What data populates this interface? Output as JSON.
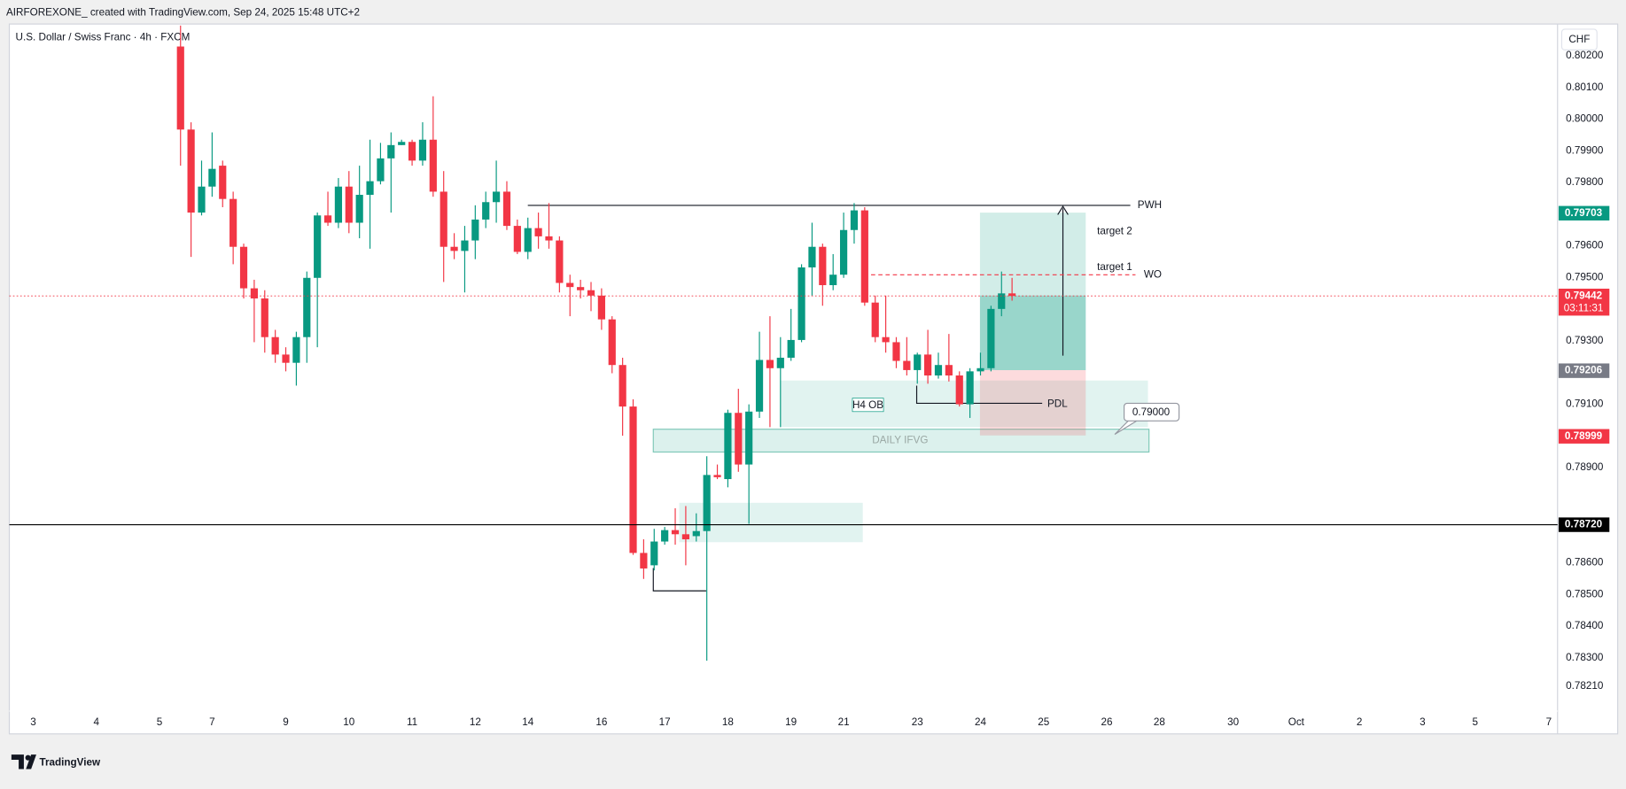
{
  "header": {
    "text": "AIRFOREXONE_ created with TradingView.com, Sep 24, 2025 15:48 UTC+2"
  },
  "footer": {
    "brand": "TradingView"
  },
  "annotations": {
    "pwh": "PWH",
    "target_2": "target 2",
    "target_1": "target 1",
    "wo": "WO",
    "h4_ob": "H4 OB",
    "pdl": "PDL",
    "callout": "0.79000",
    "daily_ifvg": "DAILY IFVG"
  },
  "chart_data": {
    "type": "candlestick",
    "title": "U.S. Dollar / Swiss Franc · 4h · FXCM",
    "currency": "CHF",
    "up_color": "#089981",
    "down_color": "#f23645",
    "ylim": [
      0.7806,
      0.803
    ],
    "yticks": [
      {
        "value": 0.802,
        "label": "0.80200"
      },
      {
        "value": 0.801,
        "label": "0.80100"
      },
      {
        "value": 0.8,
        "label": "0.80000"
      },
      {
        "value": 0.799,
        "label": "0.79900"
      },
      {
        "value": 0.798,
        "label": "0.79800"
      },
      {
        "value": 0.796,
        "label": "0.79600"
      },
      {
        "value": 0.795,
        "label": "0.79500"
      },
      {
        "value": 0.793,
        "label": "0.79300"
      },
      {
        "value": 0.791,
        "label": "0.79100"
      },
      {
        "value": 0.789,
        "label": "0.78900"
      },
      {
        "value": 0.786,
        "label": "0.78600"
      },
      {
        "value": 0.785,
        "label": "0.78500"
      },
      {
        "value": 0.784,
        "label": "0.78400"
      },
      {
        "value": 0.783,
        "label": "0.78300"
      },
      {
        "value": 0.7821,
        "label": "0.78210"
      }
    ],
    "price_markers": [
      {
        "value": 0.79703,
        "label": "0.79703",
        "color": "#089981"
      },
      {
        "value": 0.79442,
        "label": "0.79442",
        "countdown": "03:11:31",
        "color": "#f23645",
        "line": "dotted"
      },
      {
        "value": 0.79206,
        "label": "0.79206",
        "color": "#787b86"
      },
      {
        "value": 0.78999,
        "label": "0.78999",
        "color": "#f23645"
      },
      {
        "value": 0.7872,
        "label": "0.78720",
        "color": "#000000",
        "line": "solid"
      }
    ],
    "categories": [
      "3",
      null,
      null,
      null,
      null,
      null,
      "4",
      null,
      null,
      null,
      null,
      null,
      "5",
      null,
      null,
      null,
      null,
      "7",
      null,
      null,
      null,
      null,
      null,
      null,
      "9",
      null,
      null,
      null,
      null,
      null,
      "10",
      null,
      null,
      null,
      null,
      null,
      "11",
      null,
      null,
      null,
      null,
      null,
      "12",
      null,
      null,
      null,
      null,
      "14",
      null,
      null,
      null,
      null,
      null,
      null,
      "16",
      null,
      null,
      null,
      null,
      null,
      "17",
      null,
      null,
      null,
      null,
      null,
      "18",
      null,
      null,
      null,
      null,
      null,
      "19",
      null,
      null,
      null,
      null,
      "21",
      null,
      null,
      null,
      null,
      null,
      null,
      "23",
      null,
      null,
      null,
      null,
      null,
      "24",
      null,
      null,
      null,
      null,
      null,
      "25",
      null,
      null,
      null,
      null,
      null,
      "26",
      null,
      null,
      null,
      null,
      "28",
      null,
      null,
      null,
      null,
      null,
      null,
      "30",
      null,
      null,
      null,
      null,
      null,
      "Oct",
      null,
      null,
      null,
      null,
      null,
      "2",
      null,
      null,
      null,
      null,
      null,
      "3",
      null,
      null,
      null,
      null,
      "5",
      null,
      null,
      null,
      null,
      null,
      null,
      "7",
      null
    ],
    "open": [
      null,
      null,
      null,
      null,
      null,
      null,
      null,
      null,
      null,
      null,
      null,
      null,
      null,
      null,
      0.80229,
      0.79967,
      0.79705,
      0.79787,
      0.79853,
      0.79748,
      0.79597,
      0.79466,
      0.79434,
      0.79312,
      0.79257,
      0.79231,
      0.79312,
      0.79499,
      0.79696,
      0.79673,
      0.79787,
      0.79673,
      0.79761,
      0.79804,
      0.79876,
      0.79918,
      0.79928,
      0.79869,
      0.79935,
      0.79771,
      0.79597,
      0.79584,
      0.79617,
      0.79683,
      0.79738,
      0.79771,
      0.79663,
      0.79581,
      0.79656,
      0.7963,
      0.79617,
      0.79483,
      0.7947,
      0.7946,
      0.79443,
      0.79368,
      0.79224,
      0.79093,
      0.78631,
      0.78592,
      0.78667,
      0.78703,
      0.7869,
      0.78684,
      0.787,
      0.78877,
      0.78864,
      0.79073,
      0.7891,
      0.79077,
      0.7924,
      0.79214,
      0.79247,
      0.79303,
      0.79532,
      0.79597,
      0.79476,
      0.79509,
      0.7965,
      0.79712,
      0.79421,
      0.79312,
      0.79296,
      0.79237,
      0.79208,
      0.79257,
      0.79191,
      0.79224,
      0.79191,
      0.791,
      0.79204,
      0.79214,
      0.79401,
      0.7945,
      null,
      null,
      null,
      null,
      null,
      null,
      null,
      null,
      null,
      null,
      null,
      null,
      null,
      null,
      null,
      null,
      null,
      null,
      null,
      null,
      null,
      null,
      null,
      null,
      null,
      null,
      null,
      null,
      null,
      null,
      null,
      null,
      null,
      null,
      null,
      null,
      null,
      null,
      null,
      null,
      null,
      null,
      null,
      null,
      null,
      null,
      null,
      null,
      null,
      null,
      null,
      null
    ],
    "high": [
      null,
      null,
      null,
      null,
      null,
      null,
      null,
      null,
      null,
      null,
      null,
      null,
      null,
      null,
      0.80295,
      0.7999,
      0.79869,
      0.79958,
      0.79869,
      0.79771,
      0.79607,
      0.79493,
      0.7946,
      0.79335,
      0.7928,
      0.79329,
      0.79519,
      0.79705,
      0.79771,
      0.79814,
      0.79836,
      0.79853,
      0.79935,
      0.79925,
      0.79958,
      0.79935,
      0.79935,
      0.7999,
      0.80072,
      0.79836,
      0.7964,
      0.79663,
      0.79728,
      0.79771,
      0.79869,
      0.79804,
      0.79683,
      0.79689,
      0.79705,
      0.79735,
      0.7963,
      0.79509,
      0.79493,
      0.79486,
      0.79466,
      0.79378,
      0.79247,
      0.79116,
      0.78674,
      0.78707,
      0.78713,
      0.78772,
      0.78779,
      0.78756,
      0.78936,
      0.7891,
      0.79083,
      0.79149,
      0.791,
      0.79329,
      0.79378,
      0.79312,
      0.79401,
      0.79542,
      0.79673,
      0.79607,
      0.79574,
      0.79705,
      0.79735,
      0.79722,
      0.79443,
      0.79443,
      0.79312,
      0.79312,
      0.79263,
      0.79335,
      0.79263,
      0.79322,
      0.79204,
      0.79214,
      0.79263,
      0.79411,
      0.79519,
      0.79499,
      null,
      null,
      null,
      null,
      null,
      null,
      null,
      null,
      null,
      null,
      null,
      null,
      null,
      null,
      null,
      null,
      null,
      null,
      null,
      null,
      null,
      null,
      null,
      null,
      null,
      null,
      null,
      null,
      null,
      null,
      null,
      null,
      null,
      null,
      null,
      null,
      null,
      null,
      null,
      null,
      null,
      null,
      null,
      null,
      null,
      null,
      null,
      null,
      null,
      null,
      null,
      null
    ],
    "low": [
      null,
      null,
      null,
      null,
      null,
      null,
      null,
      null,
      null,
      null,
      null,
      null,
      null,
      null,
      0.79853,
      0.79565,
      0.79696,
      0.79755,
      0.79722,
      0.79542,
      0.79434,
      0.79296,
      0.79263,
      0.79231,
      0.79204,
      0.79159,
      0.79231,
      0.7928,
      0.79663,
      0.79656,
      0.7964,
      0.79624,
      0.79591,
      0.79794,
      0.79705,
      0.79918,
      0.79853,
      0.79853,
      0.79755,
      0.79486,
      0.79558,
      0.79453,
      0.79558,
      0.79656,
      0.79673,
      0.7965,
      0.79574,
      0.79558,
      0.79591,
      0.79591,
      0.79453,
      0.79378,
      0.79434,
      0.79394,
      0.79335,
      0.79198,
      0.79001,
      0.78625,
      0.78549,
      0.78576,
      0.78657,
      0.78657,
      0.78592,
      0.78667,
      0.78291,
      0.78864,
      0.78838,
      0.78887,
      0.78723,
      0.79057,
      0.79028,
      0.79028,
      0.79237,
      0.79296,
      0.79443,
      0.79411,
      0.7946,
      0.79499,
      0.79607,
      0.79411,
      0.79296,
      0.79263,
      0.79214,
      0.79191,
      0.79165,
      0.79165,
      0.79181,
      0.79172,
      0.79093,
      0.79057,
      0.79191,
      0.79204,
      0.79378,
      0.79427,
      null,
      null,
      null,
      null,
      null,
      null,
      null,
      null,
      null,
      null,
      null,
      null,
      null,
      null,
      null,
      null,
      null,
      null,
      null,
      null,
      null,
      null,
      null,
      null,
      null,
      null,
      null,
      null,
      null,
      null,
      null,
      null,
      null,
      null,
      null,
      null,
      null,
      null,
      null,
      null,
      null,
      null,
      null,
      null,
      null,
      null,
      null,
      null,
      null,
      null,
      null,
      null
    ],
    "close": [
      null,
      null,
      null,
      null,
      null,
      null,
      null,
      null,
      null,
      null,
      null,
      null,
      null,
      null,
      0.79967,
      0.79705,
      0.79787,
      0.79843,
      0.79748,
      0.79597,
      0.79466,
      0.79434,
      0.79312,
      0.79257,
      0.79231,
      0.79312,
      0.79499,
      0.79696,
      0.79673,
      0.79787,
      0.79673,
      0.79761,
      0.79804,
      0.79876,
      0.79918,
      0.79928,
      0.79869,
      0.79935,
      0.79771,
      0.79597,
      0.79584,
      0.79617,
      0.79683,
      0.79738,
      0.79771,
      0.79663,
      0.79581,
      0.79656,
      0.7963,
      0.79617,
      0.79483,
      0.7947,
      0.7946,
      0.79443,
      0.79368,
      0.79224,
      0.79093,
      0.78631,
      0.78582,
      0.78667,
      0.78703,
      0.7869,
      0.78674,
      0.787,
      0.78877,
      0.7887,
      0.79073,
      0.7891,
      0.79077,
      0.7924,
      0.79214,
      0.79247,
      0.79303,
      0.79532,
      0.79597,
      0.79476,
      0.79509,
      0.7965,
      0.79712,
      0.79421,
      0.79312,
      0.79296,
      0.79237,
      0.79208,
      0.79257,
      0.79191,
      0.79224,
      0.79191,
      0.791,
      0.79204,
      0.79214,
      0.79401,
      0.7945,
      0.79442,
      null,
      null,
      null,
      null,
      null,
      null,
      null,
      null,
      null,
      null,
      null,
      null,
      null,
      null,
      null,
      null,
      null,
      null,
      null,
      null,
      null,
      null,
      null,
      null,
      null,
      null,
      null,
      null,
      null,
      null,
      null,
      null,
      null,
      null,
      null,
      null,
      null,
      null,
      null,
      null,
      null,
      null,
      null,
      null,
      null,
      null,
      null,
      null,
      null,
      null,
      null,
      null
    ]
  }
}
